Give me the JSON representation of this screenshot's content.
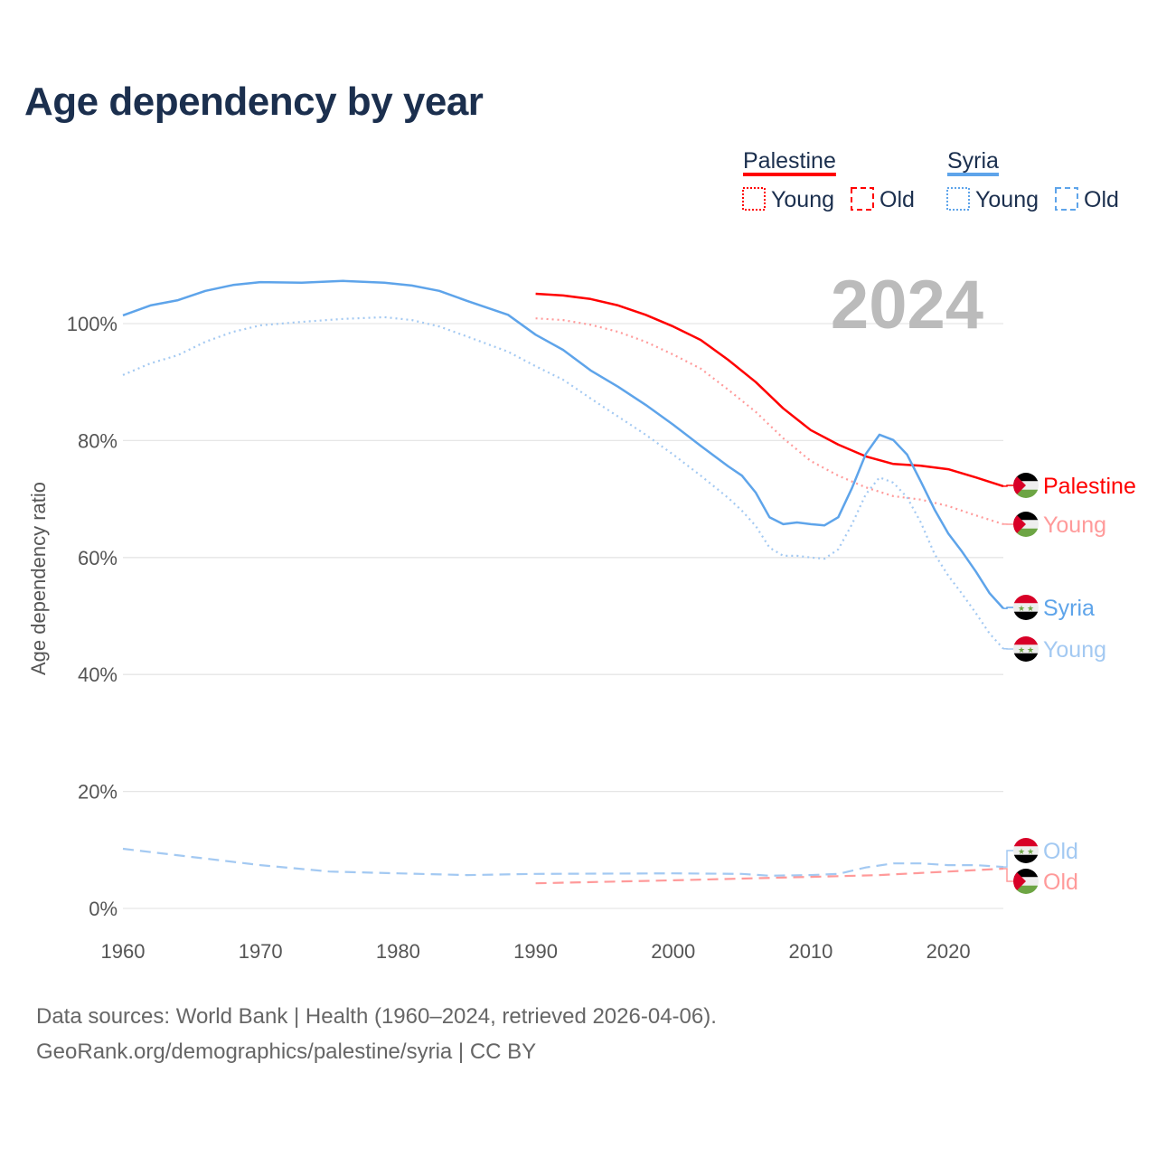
{
  "title": "Age dependency by year",
  "year_watermark": "2024",
  "footer": {
    "line1": "Data sources: World Bank | Health (1960–2024, retrieved 2026-04-06).",
    "line2": "GeoRank.org/demographics/palestine/syria | CC BY"
  },
  "legend": {
    "groups": [
      {
        "name": "Palestine",
        "color": "#ff0000",
        "young_label": "Young",
        "old_label": "Old"
      },
      {
        "name": "Syria",
        "color": "#5ea4ea",
        "young_label": "Young",
        "old_label": "Old"
      }
    ]
  },
  "chart_data": {
    "type": "line",
    "title": "Age dependency by year",
    "xlabel": "",
    "ylabel": "Age dependency ratio",
    "xlim": [
      1960,
      2024
    ],
    "ylim": [
      0,
      110
    ],
    "xticks": [
      "1960",
      "1970",
      "1980",
      "1990",
      "2000",
      "2010",
      "2020"
    ],
    "yticks": [
      "0%",
      "20%",
      "40%",
      "60%",
      "80%",
      "100%"
    ],
    "grid": true,
    "series": [
      {
        "name": "Palestine",
        "end_label": "Palestine",
        "flag": "palestine",
        "color": "#ff0000",
        "style": "solid",
        "x": [
          1990,
          1992,
          1994,
          1996,
          1998,
          2000,
          2002,
          2004,
          2006,
          2008,
          2010,
          2012,
          2014,
          2016,
          2018,
          2020,
          2022,
          2024
        ],
        "y": [
          105.1,
          104.8,
          104.2,
          103.1,
          101.5,
          99.5,
          97.2,
          93.8,
          90,
          85.5,
          81.8,
          79.3,
          77.3,
          76,
          75.7,
          75.1,
          73.7,
          72.2
        ]
      },
      {
        "name": "Palestine Young",
        "end_label": "Young",
        "flag": "palestine",
        "color": "#ff9a9a",
        "style": "dotted",
        "x": [
          1990,
          1992,
          1994,
          1996,
          1998,
          2000,
          2002,
          2004,
          2006,
          2008,
          2010,
          2012,
          2014,
          2016,
          2018,
          2020,
          2022,
          2024
        ],
        "y": [
          100.9,
          100.6,
          99.8,
          98.6,
          96.9,
          94.7,
          92.3,
          88.7,
          84.9,
          80.4,
          76.5,
          74,
          72,
          70.5,
          69.9,
          68.8,
          67.2,
          65.7
        ]
      },
      {
        "name": "Syria",
        "end_label": "Syria",
        "flag": "syria",
        "color": "#5ea4ea",
        "style": "solid",
        "x": [
          1960,
          1962,
          1964,
          1966,
          1968,
          1970,
          1973,
          1976,
          1979,
          1981,
          1983,
          1985,
          1988,
          1990,
          1992,
          1994,
          1996,
          1998,
          2000,
          2002,
          2004,
          2005,
          2006,
          2007,
          2008,
          2009,
          2010,
          2011,
          2012,
          2013,
          2014,
          2015,
          2016,
          2017,
          2018,
          2019,
          2020,
          2021,
          2022,
          2023,
          2024
        ],
        "y": [
          101.4,
          103.1,
          104,
          105.6,
          106.6,
          107.1,
          107,
          107.3,
          107,
          106.5,
          105.6,
          103.9,
          101.5,
          98.1,
          95.5,
          92,
          89.2,
          86.1,
          82.7,
          79.1,
          75.6,
          74,
          71.1,
          66.9,
          65.7,
          66,
          65.7,
          65.5,
          66.9,
          71.9,
          77.7,
          81,
          80.1,
          77.6,
          73,
          68.2,
          64.1,
          61,
          57.6,
          53.9,
          51.3
        ]
      },
      {
        "name": "Syria Young",
        "end_label": "Young",
        "flag": "syria",
        "color": "#a3c9f2",
        "style": "dotted",
        "x": [
          1960,
          1962,
          1964,
          1966,
          1968,
          1970,
          1973,
          1976,
          1979,
          1981,
          1983,
          1985,
          1988,
          1990,
          1992,
          1994,
          1996,
          1998,
          2000,
          2002,
          2004,
          2005,
          2006,
          2007,
          2008,
          2009,
          2010,
          2011,
          2012,
          2013,
          2014,
          2015,
          2016,
          2017,
          2018,
          2019,
          2020,
          2021,
          2022,
          2023,
          2024
        ],
        "y": [
          91.2,
          93.2,
          94.6,
          96.9,
          98.6,
          99.7,
          100.3,
          100.8,
          101.1,
          100.6,
          99.5,
          97.8,
          95.2,
          92.7,
          90.4,
          87.2,
          84.1,
          81,
          77.6,
          74,
          70.2,
          68,
          65.4,
          61.7,
          60.3,
          60.3,
          60,
          59.8,
          61.4,
          65.7,
          70.8,
          73.7,
          72.8,
          70.3,
          66,
          60.6,
          56.9,
          53.8,
          50.5,
          47,
          44.4
        ]
      },
      {
        "name": "Syria Old",
        "end_label": "Old",
        "flag": "syria",
        "color": "#a3c9f2",
        "style": "dashed",
        "x": [
          1960,
          1970,
          1975,
          1980,
          1985,
          1990,
          2000,
          2005,
          2007,
          2010,
          2012,
          2014,
          2016,
          2018,
          2020,
          2022,
          2024
        ],
        "y": [
          10.2,
          7.4,
          6.3,
          6,
          5.7,
          5.9,
          6,
          5.9,
          5.6,
          5.7,
          5.9,
          7,
          7.7,
          7.7,
          7.4,
          7.4,
          7.1
        ]
      },
      {
        "name": "Palestine Old",
        "end_label": "Old",
        "flag": "palestine",
        "color": "#ff9a9a",
        "style": "dashed",
        "x": [
          1990,
          2000,
          2010,
          2015,
          2020,
          2024
        ],
        "y": [
          4.3,
          4.8,
          5.4,
          5.7,
          6.3,
          6.8
        ]
      }
    ]
  }
}
